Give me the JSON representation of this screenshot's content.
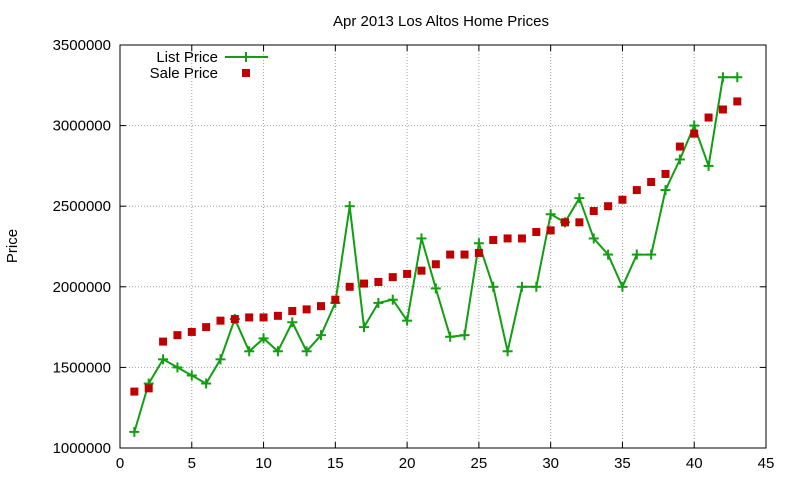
{
  "chart_data": {
    "type": "line",
    "title": "Apr 2013 Los Altos Home Prices",
    "xlabel": "",
    "ylabel": "Price",
    "xlim": [
      0,
      45
    ],
    "ylim": [
      1000000,
      3500000
    ],
    "xticks": [
      "0",
      "5",
      "10",
      "15",
      "20",
      "25",
      "30",
      "35",
      "40",
      "45"
    ],
    "yticks": [
      "1000000",
      "1500000",
      "2000000",
      "2500000",
      "3000000",
      "3500000"
    ],
    "grid": true,
    "legend_position": "top-left",
    "series": [
      {
        "name": "List Price",
        "style": "line-with-plus-markers",
        "color": "#109f10",
        "x": [
          1,
          2,
          3,
          4,
          5,
          6,
          7,
          8,
          9,
          10,
          11,
          12,
          13,
          14,
          15,
          16,
          17,
          18,
          19,
          20,
          21,
          22,
          23,
          24,
          25,
          26,
          27,
          28,
          29,
          30,
          31,
          32,
          33,
          34,
          35,
          36,
          37,
          38,
          39,
          40,
          41,
          42,
          43
        ],
        "y": [
          1100000,
          1400000,
          1550000,
          1500000,
          1450000,
          1400000,
          1550000,
          1800000,
          1600000,
          1680000,
          1600000,
          1780000,
          1600000,
          1700000,
          1900000,
          2500000,
          1750000,
          1900000,
          1920000,
          1790000,
          2300000,
          1990000,
          1690000,
          1700000,
          2270000,
          2000000,
          1600000,
          2000000,
          2000000,
          2450000,
          2400000,
          2550000,
          2300000,
          2200000,
          2000000,
          2200000,
          2200000,
          2600000,
          2790000,
          3000000,
          2750000,
          3300000,
          3300000
        ]
      },
      {
        "name": "Sale Price",
        "style": "square-markers",
        "color": "#c00000",
        "x": [
          1,
          2,
          3,
          4,
          5,
          6,
          7,
          8,
          9,
          10,
          11,
          12,
          13,
          14,
          15,
          16,
          17,
          18,
          19,
          20,
          21,
          22,
          23,
          24,
          25,
          26,
          27,
          28,
          29,
          30,
          31,
          32,
          33,
          34,
          35,
          36,
          37,
          38,
          39,
          40,
          41,
          42,
          43
        ],
        "y": [
          1350000,
          1370000,
          1660000,
          1700000,
          1720000,
          1750000,
          1790000,
          1800000,
          1810000,
          1810000,
          1820000,
          1850000,
          1860000,
          1880000,
          1920000,
          2000000,
          2020000,
          2030000,
          2060000,
          2080000,
          2100000,
          2140000,
          2200000,
          2200000,
          2210000,
          2290000,
          2300000,
          2300000,
          2340000,
          2350000,
          2400000,
          2400000,
          2470000,
          2500000,
          2540000,
          2600000,
          2650000,
          2700000,
          2870000,
          2950000,
          3050000,
          3100000,
          3150000
        ]
      }
    ]
  }
}
